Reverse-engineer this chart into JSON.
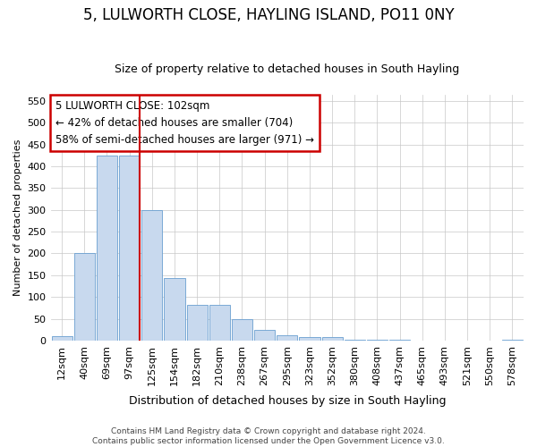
{
  "title": "5, LULWORTH CLOSE, HAYLING ISLAND, PO11 0NY",
  "subtitle": "Size of property relative to detached houses in South Hayling",
  "xlabel": "Distribution of detached houses by size in South Hayling",
  "ylabel": "Number of detached properties",
  "categories": [
    "12sqm",
    "40sqm",
    "69sqm",
    "97sqm",
    "125sqm",
    "154sqm",
    "182sqm",
    "210sqm",
    "238sqm",
    "267sqm",
    "295sqm",
    "323sqm",
    "352sqm",
    "380sqm",
    "408sqm",
    "437sqm",
    "465sqm",
    "493sqm",
    "521sqm",
    "550sqm",
    "578sqm"
  ],
  "values": [
    10,
    200,
    425,
    425,
    300,
    143,
    82,
    82,
    50,
    25,
    13,
    8,
    8,
    3,
    3,
    2,
    1,
    0,
    0,
    0,
    3
  ],
  "bar_color": "#c8d9ee",
  "bar_edge_color": "#6a9fd0",
  "vline_x_index": 3,
  "vline_color": "#cc0000",
  "annotation_text": "5 LULWORTH CLOSE: 102sqm\n← 42% of detached houses are smaller (704)\n58% of semi-detached houses are larger (971) →",
  "annotation_box_color": "#ffffff",
  "annotation_box_edge": "#cc0000",
  "ylim": [
    0,
    565
  ],
  "yticks": [
    0,
    50,
    100,
    150,
    200,
    250,
    300,
    350,
    400,
    450,
    500,
    550
  ],
  "footnote": "Contains HM Land Registry data © Crown copyright and database right 2024.\nContains public sector information licensed under the Open Government Licence v3.0.",
  "background_color": "#ffffff",
  "grid_color": "#c8c8c8",
  "title_fontsize": 12,
  "subtitle_fontsize": 9,
  "xlabel_fontsize": 9,
  "ylabel_fontsize": 8,
  "tick_fontsize": 8,
  "footnote_fontsize": 6.5
}
